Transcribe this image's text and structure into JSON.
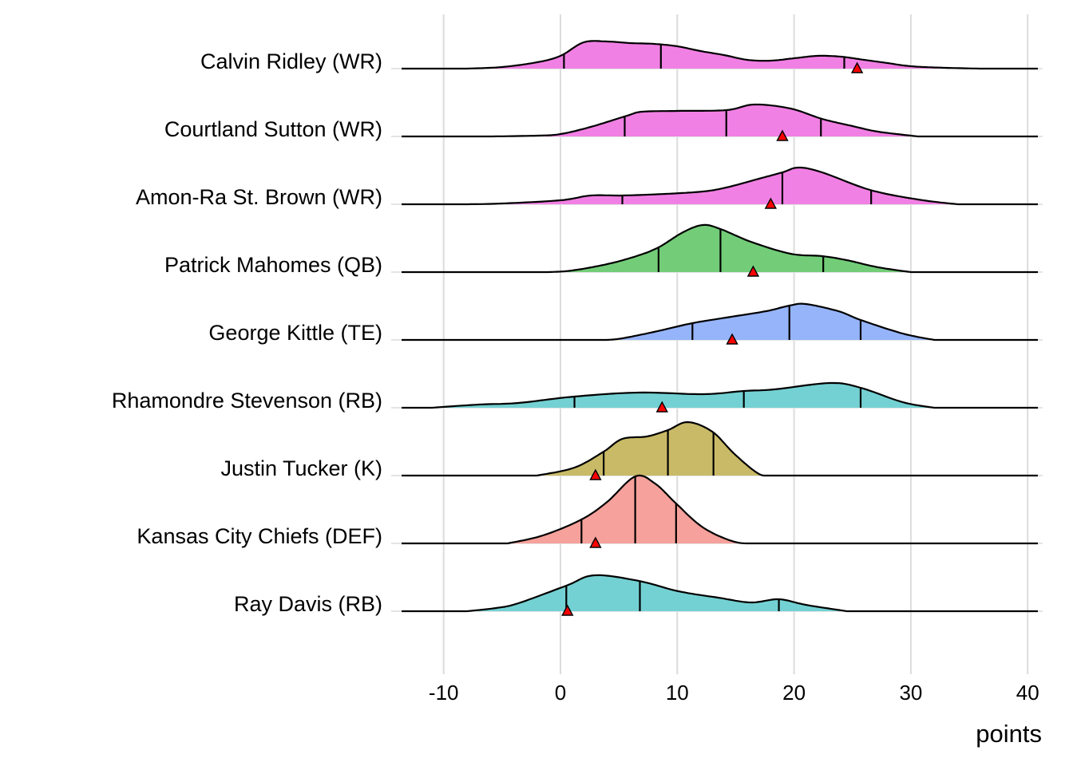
{
  "chart_data": {
    "type": "ridgeline",
    "title": "",
    "xlabel": "points",
    "ylabel": "",
    "xlim": [
      -13.5,
      41
    ],
    "xticks": [
      -10,
      0,
      10,
      20,
      30,
      40
    ],
    "xtick_labels": [
      "-10",
      "0",
      "10",
      "20",
      "30",
      "40"
    ],
    "grid": true,
    "quantile_lines": "25th, 50th, 75th percentiles",
    "marker": "red triangle = actual points",
    "marker_color": "#FF0000",
    "series": [
      {
        "name": "Calvin Ridley (WR)",
        "color": "#F17CE3",
        "density": [
          [
            -8,
            0
          ],
          [
            -5,
            2
          ],
          [
            -2,
            8
          ],
          [
            0,
            16
          ],
          [
            2,
            33
          ],
          [
            4,
            34
          ],
          [
            6,
            32
          ],
          [
            8,
            31
          ],
          [
            10,
            28
          ],
          [
            12,
            22
          ],
          [
            14,
            17
          ],
          [
            16,
            11
          ],
          [
            18,
            10
          ],
          [
            20,
            13
          ],
          [
            22,
            16
          ],
          [
            24,
            15
          ],
          [
            26,
            11
          ],
          [
            28,
            7
          ],
          [
            30,
            3
          ],
          [
            33,
            1
          ],
          [
            36,
            0
          ]
        ],
        "quantiles": [
          0.3,
          8.6,
          24.3
        ],
        "actual": 25.4
      },
      {
        "name": "Courtland Sutton (WR)",
        "color": "#F17CE3",
        "density": [
          [
            -6,
            0
          ],
          [
            -2,
            1
          ],
          [
            0,
            3
          ],
          [
            2.6,
            12
          ],
          [
            5.7,
            26
          ],
          [
            7,
            31
          ],
          [
            10,
            32
          ],
          [
            14.2,
            33
          ],
          [
            16.6,
            40
          ],
          [
            19.7,
            35
          ],
          [
            22.4,
            22
          ],
          [
            25,
            13
          ],
          [
            27.2,
            6
          ],
          [
            30.6,
            0
          ]
        ],
        "quantiles": [
          5.5,
          14.2,
          22.3
        ],
        "actual": 19.0
      },
      {
        "name": "Amon-Ra St. Brown (WR)",
        "color": "#F17CE3",
        "density": [
          [
            -8,
            0
          ],
          [
            -5,
            1
          ],
          [
            0,
            5
          ],
          [
            2.6,
            11
          ],
          [
            5.3,
            11
          ],
          [
            9,
            13
          ],
          [
            12.2,
            16
          ],
          [
            14.2,
            21
          ],
          [
            17,
            32
          ],
          [
            19,
            40
          ],
          [
            20.4,
            46
          ],
          [
            22.4,
            40
          ],
          [
            26.5,
            18
          ],
          [
            30.6,
            6
          ],
          [
            34,
            0
          ]
        ],
        "quantiles": [
          5.3,
          19.0,
          26.6
        ],
        "actual": 18.0
      },
      {
        "name": "Patrick Mahomes (QB)",
        "color": "#6ECB74",
        "density": [
          [
            -1,
            0
          ],
          [
            1,
            2
          ],
          [
            4,
            10
          ],
          [
            6.5,
            20
          ],
          [
            8.4,
            31
          ],
          [
            10.5,
            50
          ],
          [
            12.2,
            59
          ],
          [
            13.7,
            54
          ],
          [
            16.3,
            38
          ],
          [
            19.7,
            23
          ],
          [
            22.4,
            20
          ],
          [
            24.5,
            15
          ],
          [
            27.2,
            6
          ],
          [
            30,
            0
          ]
        ],
        "quantiles": [
          8.4,
          13.7,
          22.5
        ],
        "actual": 16.5
      },
      {
        "name": "George Kittle (TE)",
        "color": "#93B2FA",
        "density": [
          [
            4,
            0
          ],
          [
            5.3,
            2
          ],
          [
            8,
            10
          ],
          [
            11.3,
            21
          ],
          [
            14.2,
            28
          ],
          [
            17.6,
            36
          ],
          [
            19.6,
            43
          ],
          [
            21,
            45
          ],
          [
            23.8,
            36
          ],
          [
            25.7,
            25
          ],
          [
            29.3,
            8
          ],
          [
            32,
            0
          ]
        ],
        "quantiles": [
          11.3,
          19.6,
          25.7
        ],
        "actual": 14.7
      },
      {
        "name": "Rhamondre Stevenson (RB)",
        "color": "#6FD0D2",
        "density": [
          [
            -11,
            0
          ],
          [
            -7,
            4
          ],
          [
            -3.6,
            6
          ],
          [
            1.2,
            14
          ],
          [
            6.7,
            19
          ],
          [
            12.2,
            17
          ],
          [
            15.7,
            21
          ],
          [
            18.3,
            23
          ],
          [
            23.1,
            31
          ],
          [
            25.7,
            25
          ],
          [
            29.3,
            7
          ],
          [
            32,
            0
          ]
        ],
        "quantiles": [
          1.2,
          15.7,
          25.7
        ],
        "actual": 8.7
      },
      {
        "name": "Justin Tucker (K)",
        "color": "#C7B862",
        "density": [
          [
            -2,
            0
          ],
          [
            1.2,
            10
          ],
          [
            3.7,
            30
          ],
          [
            5.3,
            46
          ],
          [
            7.4,
            49
          ],
          [
            9.2,
            57
          ],
          [
            10.9,
            67
          ],
          [
            13,
            55
          ],
          [
            14.9,
            27
          ],
          [
            17,
            2
          ],
          [
            18.3,
            0
          ]
        ],
        "quantiles": [
          3.7,
          9.2,
          13.1
        ],
        "actual": 3.0
      },
      {
        "name": "Kansas City Chiefs (DEF)",
        "color": "#F69E98",
        "density": [
          [
            -4.5,
            0
          ],
          [
            -1.5,
            10
          ],
          [
            1.8,
            30
          ],
          [
            4,
            52
          ],
          [
            6.4,
            84
          ],
          [
            8.1,
            75
          ],
          [
            9.9,
            50
          ],
          [
            12.2,
            20
          ],
          [
            14.9,
            2
          ],
          [
            17,
            0
          ]
        ],
        "quantiles": [
          1.8,
          6.4,
          9.9
        ],
        "actual": 3.0
      },
      {
        "name": "Ray Davis (RB)",
        "color": "#6FD0D2",
        "density": [
          [
            -8,
            0
          ],
          [
            -5.5,
            4
          ],
          [
            -3.6,
            10
          ],
          [
            0.5,
            32
          ],
          [
            2.9,
            45
          ],
          [
            6.7,
            38
          ],
          [
            10.1,
            25
          ],
          [
            13.5,
            17
          ],
          [
            16.3,
            11
          ],
          [
            18.7,
            15
          ],
          [
            21,
            8
          ],
          [
            24.5,
            0
          ]
        ],
        "quantiles": [
          0.5,
          6.8,
          18.7
        ],
        "actual": 0.6
      }
    ]
  }
}
